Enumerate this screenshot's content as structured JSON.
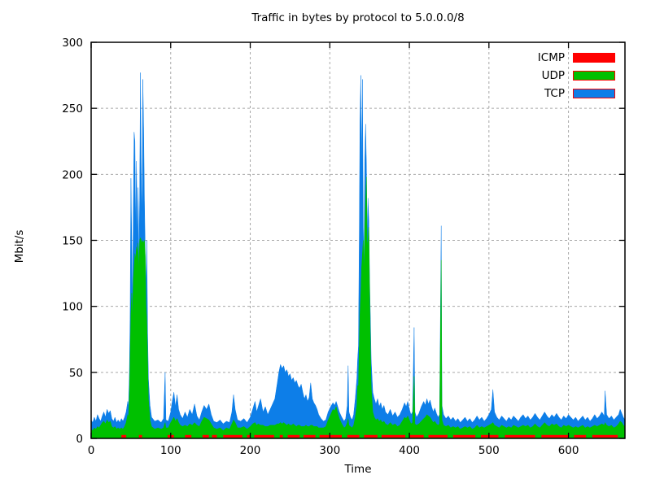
{
  "chart_data": {
    "type": "area",
    "title": "Traffic in bytes by protocol to 5.0.0.0/8",
    "xlabel": "Time",
    "ylabel": "Mbit/s",
    "xlim": [
      0,
      671
    ],
    "ylim": [
      0,
      300
    ],
    "x_ticks": [
      0,
      100,
      200,
      300,
      400,
      500,
      600
    ],
    "y_ticks": [
      0,
      50,
      100,
      150,
      200,
      250,
      300
    ],
    "grid": true,
    "grid_color": "#a8a8a8",
    "legend_position": "top-right-inside",
    "legend": [
      {
        "name": "ICMP",
        "color": "#ff0000"
      },
      {
        "name": "UDP",
        "color": "#00c000"
      },
      {
        "name": "TCP",
        "color": "#0d7ee8"
      }
    ],
    "series_note": "points are [time, tcp_total_top_mbit, udp_top_mbit]; TCP drawn behind UDP (stacked totals); ICMP is a thin intermittent band at the baseline",
    "points": [
      [
        0,
        14,
        7
      ],
      [
        2,
        12,
        6
      ],
      [
        4,
        16,
        8
      ],
      [
        6,
        13,
        7
      ],
      [
        8,
        18,
        9
      ],
      [
        10,
        15,
        8
      ],
      [
        12,
        13,
        10
      ],
      [
        14,
        17,
        12
      ],
      [
        16,
        20,
        13
      ],
      [
        18,
        16,
        11
      ],
      [
        20,
        22,
        14
      ],
      [
        22,
        19,
        12
      ],
      [
        24,
        21,
        13
      ],
      [
        26,
        15,
        9
      ],
      [
        28,
        13,
        8
      ],
      [
        30,
        16,
        9
      ],
      [
        32,
        12,
        7
      ],
      [
        34,
        14,
        8
      ],
      [
        36,
        12,
        7
      ],
      [
        38,
        15,
        8
      ],
      [
        40,
        13,
        7
      ],
      [
        42,
        16,
        9
      ],
      [
        44,
        20,
        12
      ],
      [
        46,
        28,
        18
      ],
      [
        47,
        24,
        16
      ],
      [
        48,
        45,
        30
      ],
      [
        49,
        90,
        60
      ],
      [
        50,
        197,
        95
      ],
      [
        51,
        150,
        110
      ],
      [
        52,
        100,
        90
      ],
      [
        53,
        170,
        120
      ],
      [
        54,
        232,
        130
      ],
      [
        55,
        225,
        140
      ],
      [
        56,
        160,
        135
      ],
      [
        57,
        210,
        145
      ],
      [
        58,
        150,
        140
      ],
      [
        59,
        190,
        148
      ],
      [
        60,
        130,
        126
      ],
      [
        61,
        180,
        150
      ],
      [
        62,
        277,
        152
      ],
      [
        63,
        200,
        150
      ],
      [
        64,
        160,
        148
      ],
      [
        65,
        272,
        150
      ],
      [
        66,
        235,
        148
      ],
      [
        67,
        180,
        150
      ],
      [
        68,
        140,
        138
      ],
      [
        69,
        110,
        100
      ],
      [
        70,
        150,
        90
      ],
      [
        71,
        80,
        60
      ],
      [
        72,
        45,
        30
      ],
      [
        74,
        25,
        14
      ],
      [
        76,
        16,
        9
      ],
      [
        80,
        13,
        7
      ],
      [
        84,
        14,
        8
      ],
      [
        88,
        12,
        7
      ],
      [
        91,
        15,
        8
      ],
      [
        93,
        50,
        12
      ],
      [
        94,
        14,
        8
      ],
      [
        97,
        13,
        8
      ],
      [
        100,
        20,
        12
      ],
      [
        102,
        28,
        14
      ],
      [
        104,
        35,
        16
      ],
      [
        106,
        24,
        13
      ],
      [
        108,
        33,
        15
      ],
      [
        110,
        22,
        12
      ],
      [
        112,
        18,
        10
      ],
      [
        115,
        15,
        9
      ],
      [
        118,
        20,
        10
      ],
      [
        121,
        16,
        9
      ],
      [
        124,
        22,
        11
      ],
      [
        127,
        18,
        10
      ],
      [
        130,
        26,
        12
      ],
      [
        133,
        17,
        10
      ],
      [
        136,
        14,
        9
      ],
      [
        139,
        20,
        13
      ],
      [
        142,
        25,
        16
      ],
      [
        145,
        22,
        15
      ],
      [
        148,
        26,
        14
      ],
      [
        151,
        18,
        11
      ],
      [
        154,
        13,
        8
      ],
      [
        158,
        12,
        7
      ],
      [
        162,
        14,
        8
      ],
      [
        166,
        11,
        6
      ],
      [
        170,
        13,
        8
      ],
      [
        174,
        12,
        7
      ],
      [
        177,
        20,
        11
      ],
      [
        179,
        33,
        14
      ],
      [
        181,
        22,
        12
      ],
      [
        184,
        14,
        8
      ],
      [
        188,
        13,
        8
      ],
      [
        192,
        15,
        9
      ],
      [
        196,
        12,
        7
      ],
      [
        200,
        16,
        9
      ],
      [
        203,
        22,
        11
      ],
      [
        206,
        28,
        12
      ],
      [
        208,
        20,
        10
      ],
      [
        210,
        24,
        11
      ],
      [
        213,
        30,
        10
      ],
      [
        216,
        20,
        10
      ],
      [
        219,
        24,
        9
      ],
      [
        222,
        18,
        9
      ],
      [
        225,
        22,
        10
      ],
      [
        228,
        26,
        10
      ],
      [
        231,
        30,
        10
      ],
      [
        234,
        42,
        11
      ],
      [
        236,
        50,
        11
      ],
      [
        238,
        56,
        12
      ],
      [
        240,
        53,
        11
      ],
      [
        242,
        55,
        12
      ],
      [
        244,
        50,
        11
      ],
      [
        246,
        52,
        10
      ],
      [
        248,
        47,
        11
      ],
      [
        250,
        49,
        10
      ],
      [
        252,
        44,
        10
      ],
      [
        254,
        46,
        11
      ],
      [
        256,
        42,
        10
      ],
      [
        258,
        44,
        9
      ],
      [
        260,
        40,
        10
      ],
      [
        262,
        38,
        10
      ],
      [
        264,
        41,
        9
      ],
      [
        266,
        35,
        9
      ],
      [
        268,
        30,
        9
      ],
      [
        270,
        33,
        10
      ],
      [
        272,
        28,
        9
      ],
      [
        274,
        31,
        9
      ],
      [
        276,
        42,
        10
      ],
      [
        278,
        30,
        10
      ],
      [
        280,
        27,
        9
      ],
      [
        282,
        25,
        9
      ],
      [
        284,
        22,
        9
      ],
      [
        286,
        18,
        8
      ],
      [
        289,
        15,
        8
      ],
      [
        292,
        13,
        8
      ],
      [
        295,
        14,
        9
      ],
      [
        298,
        20,
        14
      ],
      [
        301,
        24,
        18
      ],
      [
        304,
        27,
        22
      ],
      [
        306,
        25,
        21
      ],
      [
        308,
        28,
        24
      ],
      [
        310,
        24,
        19
      ],
      [
        312,
        20,
        15
      ],
      [
        315,
        16,
        11
      ],
      [
        318,
        13,
        8
      ],
      [
        320,
        15,
        9
      ],
      [
        322,
        25,
        12
      ],
      [
        323,
        55,
        15
      ],
      [
        324,
        20,
        10
      ],
      [
        326,
        16,
        9
      ],
      [
        328,
        14,
        8
      ],
      [
        330,
        18,
        10
      ],
      [
        332,
        30,
        16
      ],
      [
        334,
        45,
        25
      ],
      [
        335,
        60,
        40
      ],
      [
        336,
        70,
        40
      ],
      [
        337,
        150,
        70
      ],
      [
        338,
        240,
        95
      ],
      [
        339,
        275,
        110
      ],
      [
        340,
        200,
        130
      ],
      [
        341,
        272,
        140
      ],
      [
        342,
        160,
        150
      ],
      [
        343,
        130,
        125
      ],
      [
        344,
        210,
        160
      ],
      [
        345,
        238,
        180
      ],
      [
        346,
        205,
        198
      ],
      [
        347,
        150,
        145
      ],
      [
        348,
        182,
        150
      ],
      [
        349,
        165,
        160
      ],
      [
        350,
        120,
        110
      ],
      [
        351,
        90,
        70
      ],
      [
        352,
        60,
        40
      ],
      [
        354,
        35,
        20
      ],
      [
        356,
        30,
        16
      ],
      [
        358,
        26,
        14
      ],
      [
        360,
        30,
        15
      ],
      [
        362,
        24,
        13
      ],
      [
        364,
        27,
        14
      ],
      [
        366,
        22,
        12
      ],
      [
        368,
        25,
        13
      ],
      [
        370,
        20,
        11
      ],
      [
        373,
        18,
        10
      ],
      [
        376,
        22,
        12
      ],
      [
        379,
        17,
        10
      ],
      [
        382,
        20,
        11
      ],
      [
        385,
        16,
        9
      ],
      [
        388,
        18,
        10
      ],
      [
        391,
        22,
        13
      ],
      [
        394,
        27,
        16
      ],
      [
        396,
        24,
        15
      ],
      [
        398,
        28,
        17
      ],
      [
        400,
        22,
        14
      ],
      [
        402,
        18,
        11
      ],
      [
        404,
        20,
        12
      ],
      [
        406,
        84,
        47
      ],
      [
        407,
        20,
        11
      ],
      [
        409,
        16,
        10
      ],
      [
        412,
        19,
        11
      ],
      [
        415,
        24,
        13
      ],
      [
        418,
        28,
        15
      ],
      [
        420,
        25,
        16
      ],
      [
        422,
        30,
        18
      ],
      [
        424,
        26,
        17
      ],
      [
        426,
        29,
        16
      ],
      [
        428,
        24,
        14
      ],
      [
        430,
        20,
        12
      ],
      [
        432,
        23,
        13
      ],
      [
        434,
        19,
        11
      ],
      [
        436,
        16,
        10
      ],
      [
        438,
        18,
        11
      ],
      [
        440,
        161,
        135
      ],
      [
        441,
        25,
        14
      ],
      [
        443,
        18,
        10
      ],
      [
        446,
        15,
        9
      ],
      [
        449,
        17,
        10
      ],
      [
        452,
        14,
        8
      ],
      [
        455,
        16,
        9
      ],
      [
        458,
        13,
        8
      ],
      [
        461,
        15,
        9
      ],
      [
        464,
        12,
        7
      ],
      [
        467,
        14,
        8
      ],
      [
        470,
        16,
        9
      ],
      [
        473,
        13,
        8
      ],
      [
        476,
        15,
        9
      ],
      [
        479,
        12,
        7
      ],
      [
        482,
        14,
        8
      ],
      [
        485,
        17,
        10
      ],
      [
        488,
        14,
        8
      ],
      [
        491,
        16,
        9
      ],
      [
        494,
        13,
        8
      ],
      [
        497,
        15,
        9
      ],
      [
        500,
        18,
        10
      ],
      [
        503,
        22,
        11
      ],
      [
        505,
        37,
        12
      ],
      [
        507,
        20,
        10
      ],
      [
        510,
        16,
        9
      ],
      [
        513,
        14,
        8
      ],
      [
        516,
        17,
        10
      ],
      [
        519,
        15,
        9
      ],
      [
        522,
        13,
        8
      ],
      [
        525,
        16,
        9
      ],
      [
        528,
        14,
        8
      ],
      [
        531,
        17,
        10
      ],
      [
        534,
        15,
        9
      ],
      [
        537,
        13,
        8
      ],
      [
        540,
        16,
        9
      ],
      [
        543,
        18,
        10
      ],
      [
        546,
        15,
        9
      ],
      [
        549,
        17,
        10
      ],
      [
        552,
        14,
        8
      ],
      [
        555,
        16,
        9
      ],
      [
        558,
        19,
        11
      ],
      [
        561,
        16,
        9
      ],
      [
        564,
        14,
        8
      ],
      [
        567,
        17,
        10
      ],
      [
        570,
        20,
        12
      ],
      [
        573,
        17,
        10
      ],
      [
        576,
        15,
        9
      ],
      [
        579,
        18,
        11
      ],
      [
        582,
        16,
        10
      ],
      [
        585,
        19,
        11
      ],
      [
        588,
        16,
        9
      ],
      [
        591,
        14,
        8
      ],
      [
        594,
        17,
        10
      ],
      [
        597,
        15,
        9
      ],
      [
        600,
        18,
        10
      ],
      [
        603,
        16,
        9
      ],
      [
        606,
        14,
        8
      ],
      [
        609,
        16,
        9
      ],
      [
        612,
        13,
        8
      ],
      [
        615,
        15,
        9
      ],
      [
        618,
        17,
        10
      ],
      [
        621,
        14,
        8
      ],
      [
        624,
        16,
        9
      ],
      [
        627,
        13,
        8
      ],
      [
        630,
        15,
        9
      ],
      [
        633,
        18,
        10
      ],
      [
        636,
        15,
        9
      ],
      [
        639,
        17,
        10
      ],
      [
        642,
        20,
        11
      ],
      [
        645,
        17,
        10
      ],
      [
        646,
        36,
        12
      ],
      [
        648,
        18,
        10
      ],
      [
        651,
        15,
        9
      ],
      [
        654,
        17,
        10
      ],
      [
        657,
        14,
        8
      ],
      [
        660,
        16,
        9
      ],
      [
        663,
        18,
        11
      ],
      [
        665,
        22,
        13
      ],
      [
        667,
        19,
        12
      ],
      [
        669,
        16,
        10
      ],
      [
        671,
        14,
        9
      ]
    ],
    "icmp_segments": [
      [
        38,
        44
      ],
      [
        60,
        64
      ],
      [
        96,
        104
      ],
      [
        118,
        126
      ],
      [
        140,
        148
      ],
      [
        152,
        158
      ],
      [
        166,
        190
      ],
      [
        196,
        200
      ],
      [
        205,
        230
      ],
      [
        237,
        241
      ],
      [
        247,
        262
      ],
      [
        267,
        282
      ],
      [
        287,
        315
      ],
      [
        322,
        337
      ],
      [
        343,
        360
      ],
      [
        365,
        395
      ],
      [
        400,
        418
      ],
      [
        424,
        448
      ],
      [
        455,
        483
      ],
      [
        490,
        512
      ],
      [
        520,
        558
      ],
      [
        566,
        600
      ],
      [
        607,
        622
      ],
      [
        630,
        662
      ]
    ],
    "icmp_height": 2
  }
}
